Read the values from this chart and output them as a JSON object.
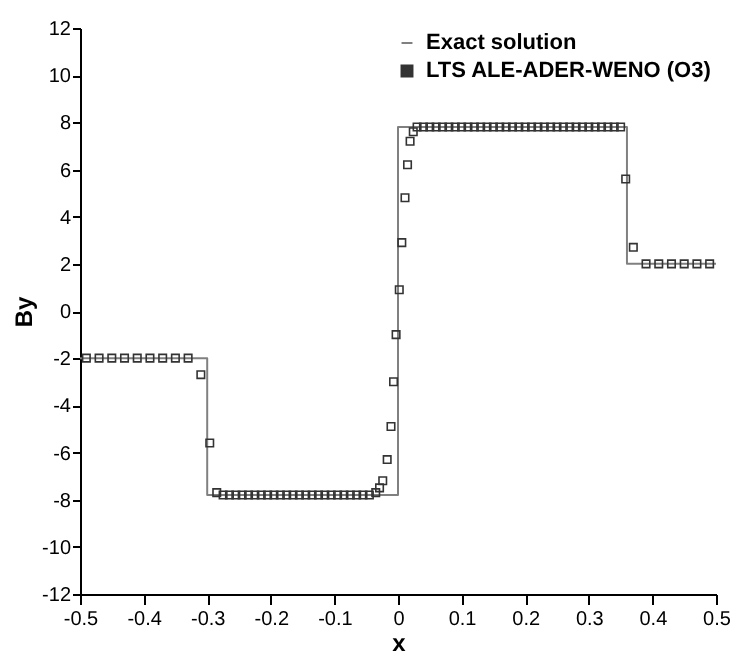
{
  "chart_data": {
    "type": "line",
    "xlabel": "x",
    "ylabel": "By",
    "xlim": [
      -0.5,
      0.5
    ],
    "ylim": [
      -12,
      12
    ],
    "xticks": [
      -0.5,
      -0.4,
      -0.3,
      -0.2,
      -0.1,
      0,
      0.1,
      0.2,
      0.3,
      0.4,
      0.5
    ],
    "yticks": [
      -12,
      -10,
      -8,
      -6,
      -4,
      -2,
      0,
      2,
      4,
      6,
      8,
      10,
      12
    ],
    "grid": false,
    "legend": "top right",
    "series": [
      {
        "name": "Exact solution",
        "type": "line",
        "color": "#808080",
        "x": [
          -0.5,
          -0.3,
          -0.3,
          0,
          0,
          0.36,
          0.36,
          0.5
        ],
        "values": [
          -2,
          -2,
          -7.8,
          -7.8,
          7.8,
          7.8,
          2,
          2
        ]
      },
      {
        "name": "LTS ALE-ADER-WENO (O3)",
        "type": "scatter",
        "marker": "square",
        "color": "#333333",
        "x": [
          -0.49,
          -0.47,
          -0.45,
          -0.43,
          -0.41,
          -0.39,
          -0.37,
          -0.35,
          -0.33,
          -0.31,
          -0.296,
          -0.285,
          -0.275,
          -0.265,
          -0.255,
          -0.245,
          -0.235,
          -0.225,
          -0.215,
          -0.205,
          -0.195,
          -0.185,
          -0.175,
          -0.165,
          -0.155,
          -0.145,
          -0.135,
          -0.125,
          -0.115,
          -0.105,
          -0.095,
          -0.085,
          -0.075,
          -0.065,
          -0.055,
          -0.045,
          -0.035,
          -0.029,
          -0.024,
          -0.017,
          -0.011,
          -0.007,
          -0.003,
          0.002,
          0.006,
          0.011,
          0.015,
          0.019,
          0.024,
          0.03,
          0.04,
          0.05,
          0.06,
          0.07,
          0.08,
          0.09,
          0.1,
          0.11,
          0.12,
          0.13,
          0.14,
          0.15,
          0.16,
          0.17,
          0.18,
          0.19,
          0.2,
          0.21,
          0.22,
          0.23,
          0.24,
          0.25,
          0.26,
          0.27,
          0.28,
          0.29,
          0.3,
          0.31,
          0.32,
          0.33,
          0.34,
          0.35,
          0.358,
          0.37,
          0.39,
          0.41,
          0.43,
          0.45,
          0.47,
          0.49
        ],
        "values": [
          -2,
          -2,
          -2,
          -2,
          -2,
          -2,
          -2,
          -2,
          -2,
          -2.7,
          -5.6,
          -7.7,
          -7.8,
          -7.8,
          -7.8,
          -7.8,
          -7.8,
          -7.8,
          -7.8,
          -7.8,
          -7.8,
          -7.8,
          -7.8,
          -7.8,
          -7.8,
          -7.8,
          -7.8,
          -7.8,
          -7.8,
          -7.8,
          -7.8,
          -7.8,
          -7.8,
          -7.8,
          -7.8,
          -7.8,
          -7.7,
          -7.5,
          -7.2,
          -6.3,
          -4.9,
          -3.0,
          -1.0,
          0.9,
          2.9,
          4.8,
          6.2,
          7.2,
          7.6,
          7.8,
          7.8,
          7.8,
          7.8,
          7.8,
          7.8,
          7.8,
          7.8,
          7.8,
          7.8,
          7.8,
          7.8,
          7.8,
          7.8,
          7.8,
          7.8,
          7.8,
          7.8,
          7.8,
          7.8,
          7.8,
          7.8,
          7.8,
          7.8,
          7.8,
          7.8,
          7.8,
          7.8,
          7.8,
          7.8,
          7.8,
          7.8,
          7.8,
          5.6,
          2.7,
          2,
          2,
          2,
          2,
          2,
          2
        ]
      }
    ]
  }
}
